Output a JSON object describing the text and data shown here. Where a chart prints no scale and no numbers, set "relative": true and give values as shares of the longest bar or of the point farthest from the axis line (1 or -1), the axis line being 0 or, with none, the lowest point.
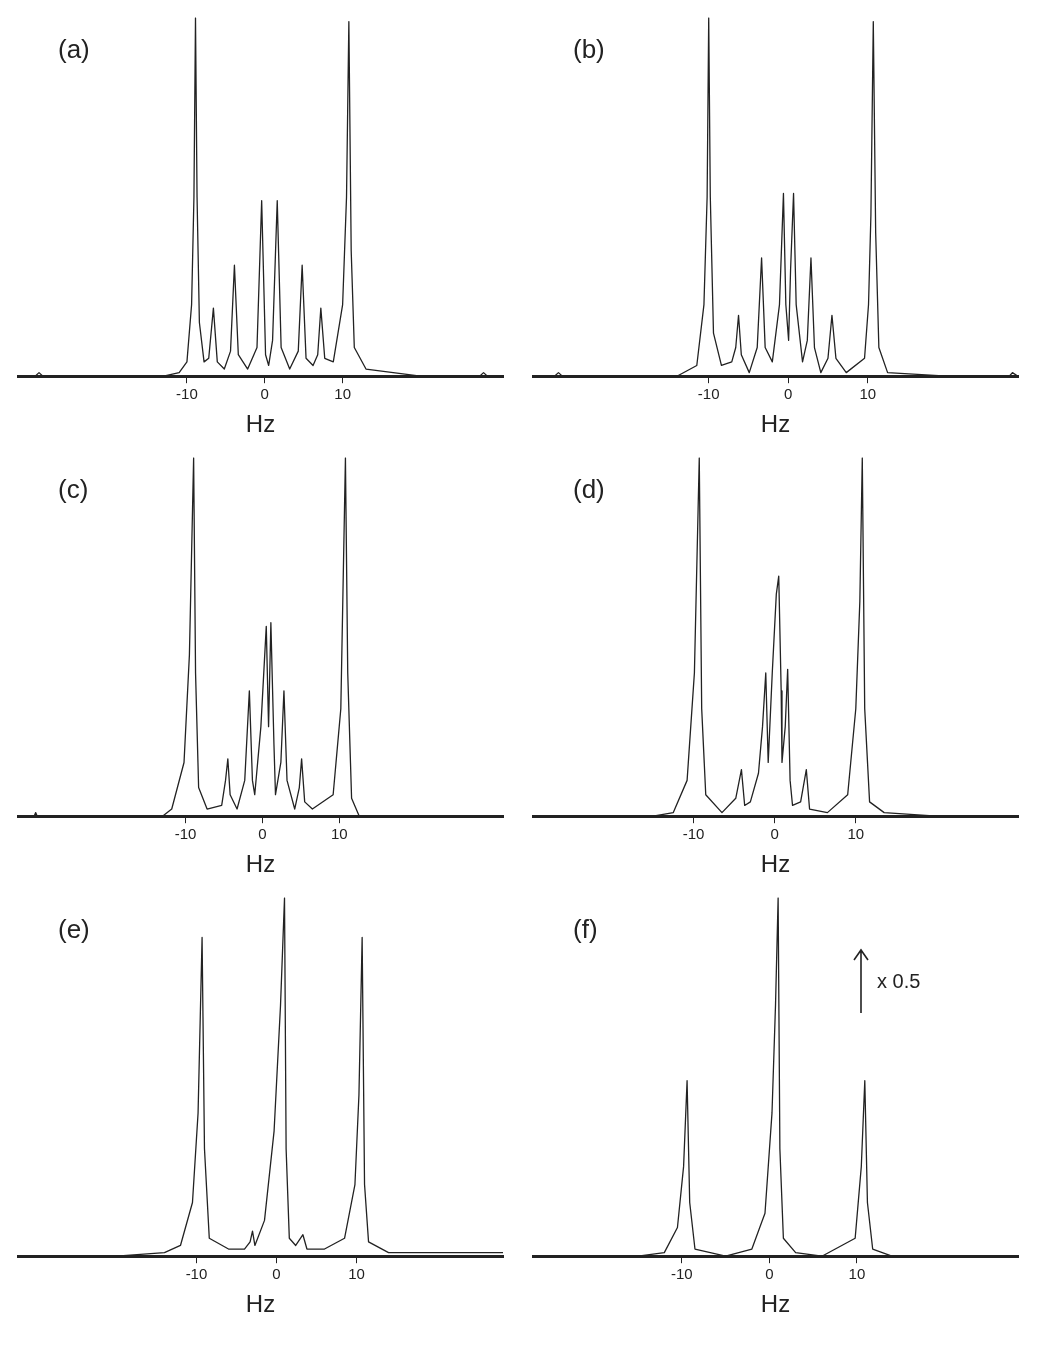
{
  "chart_data": [
    {
      "type": "line",
      "title": "(a)",
      "xlabel": "Hz",
      "color": "#222222",
      "relative": true,
      "grid": false,
      "legend": false,
      "marker": "none",
      "xlim": [
        -31.7,
        30.6
      ],
      "xticks": [
        -10,
        0,
        10
      ],
      "x": [
        -31.7,
        -29.5,
        -29,
        -28.5,
        -13,
        -11,
        -10,
        -9.4,
        -9.1,
        -8.9,
        -8.7,
        -8.4,
        -7.8,
        -7.2,
        -6.6,
        -6.1,
        -5.2,
        -4.4,
        -3.9,
        -3.4,
        -2.2,
        -1.0,
        -0.4,
        0.1,
        0.5,
        1.0,
        1.6,
        2.1,
        3.2,
        4.3,
        4.8,
        5.3,
        6.2,
        6.8,
        7.2,
        7.7,
        8.8,
        10.0,
        10.5,
        10.8,
        11.1,
        11.5,
        13,
        20,
        27.6,
        28.1,
        28.6,
        30.6
      ],
      "values": [
        0,
        0,
        0.01,
        0,
        0,
        0.01,
        0.04,
        0.2,
        0.5,
        1.0,
        0.5,
        0.15,
        0.04,
        0.05,
        0.19,
        0.04,
        0.02,
        0.07,
        0.31,
        0.06,
        0.02,
        0.08,
        0.49,
        0.06,
        0.03,
        0.1,
        0.49,
        0.08,
        0.02,
        0.07,
        0.31,
        0.05,
        0.03,
        0.06,
        0.19,
        0.05,
        0.04,
        0.2,
        0.5,
        0.99,
        0.35,
        0.08,
        0.02,
        0,
        0,
        0.01,
        0,
        0
      ]
    },
    {
      "type": "line",
      "title": "(b)",
      "xlabel": "Hz",
      "color": "#222222",
      "relative": true,
      "grid": false,
      "legend": false,
      "marker": "none",
      "xlim": [
        -32.1,
        28.9
      ],
      "xticks": [
        -10,
        0,
        10
      ],
      "x": [
        -32.1,
        -29.4,
        -28.9,
        -28.4,
        -14,
        -11.5,
        -10.6,
        -10.2,
        -10,
        -9.8,
        -9.4,
        -8.4,
        -7.1,
        -6.6,
        -6.25,
        -5.9,
        -4.9,
        -3.9,
        -3.35,
        -2.9,
        -2.0,
        -1.1,
        -0.6,
        -0.3,
        0.05,
        0.3,
        0.67,
        1.0,
        1.8,
        2.4,
        2.86,
        3.3,
        4.1,
        5.0,
        5.5,
        6.0,
        7.3,
        9.6,
        10.1,
        10.4,
        10.7,
        11.0,
        11.4,
        12.5,
        20,
        27.8,
        28.2,
        28.9
      ],
      "values": [
        0,
        0,
        0.01,
        0,
        0,
        0.03,
        0.2,
        0.5,
        1.0,
        0.5,
        0.12,
        0.03,
        0.04,
        0.08,
        0.17,
        0.06,
        0.01,
        0.08,
        0.33,
        0.08,
        0.04,
        0.2,
        0.51,
        0.2,
        0.1,
        0.3,
        0.51,
        0.2,
        0.04,
        0.1,
        0.33,
        0.08,
        0.01,
        0.05,
        0.17,
        0.05,
        0.01,
        0.05,
        0.2,
        0.45,
        0.99,
        0.4,
        0.08,
        0.01,
        0,
        0,
        0.01,
        0
      ]
    },
    {
      "type": "line",
      "title": "(c)",
      "xlabel": "Hz",
      "color": "#222222",
      "relative": true,
      "grid": false,
      "legend": false,
      "marker": "none",
      "xlim": [
        -31.8,
        31.3
      ],
      "xticks": [
        -10,
        0,
        10
      ],
      "x": [
        -31.8,
        -29.7,
        -29.5,
        -29.3,
        -13,
        -11.8,
        -10.2,
        -9.5,
        -8.95,
        -8.7,
        -8.3,
        -7.2,
        -5.3,
        -4.8,
        -4.5,
        -4.2,
        -3.3,
        -2.3,
        -1.7,
        -1.3,
        -1.0,
        -0.2,
        0.5,
        0.8,
        1.1,
        1.5,
        1.7,
        2.4,
        2.8,
        3.2,
        4.2,
        4.8,
        5.1,
        5.5,
        6.5,
        9.2,
        10.2,
        10.8,
        11.1,
        11.6,
        12.6,
        20,
        31.3
      ],
      "values": [
        0,
        0,
        0.01,
        0,
        0,
        0.02,
        0.15,
        0.45,
        1.0,
        0.4,
        0.08,
        0.02,
        0.03,
        0.1,
        0.16,
        0.06,
        0.02,
        0.1,
        0.35,
        0.1,
        0.06,
        0.25,
        0.53,
        0.25,
        0.54,
        0.2,
        0.06,
        0.15,
        0.35,
        0.1,
        0.02,
        0.08,
        0.16,
        0.04,
        0.02,
        0.06,
        0.3,
        1.0,
        0.4,
        0.05,
        0,
        0,
        0
      ]
    },
    {
      "type": "line",
      "title": "(d)",
      "xlabel": "Hz",
      "color": "#222222",
      "relative": true,
      "grid": false,
      "legend": false,
      "marker": "none",
      "xlim": [
        -29.8,
        30
      ],
      "xticks": [
        -10,
        0,
        10
      ],
      "x": [
        -29.8,
        -15,
        -12.5,
        -10.8,
        -9.9,
        -9.3,
        -9.0,
        -8.5,
        -6.5,
        -4.8,
        -4.1,
        -3.7,
        -3.0,
        -2.0,
        -1.5,
        -1.1,
        -0.8,
        -0.3,
        0.2,
        0.5,
        0.8,
        0.9,
        1.3,
        1.6,
        1.9,
        2.2,
        3.2,
        3.9,
        4.3,
        6.5,
        9.0,
        10.0,
        10.5,
        10.8,
        11.1,
        11.7,
        13.5,
        20,
        30
      ],
      "values": [
        0,
        0,
        0.01,
        0.1,
        0.4,
        1.0,
        0.3,
        0.06,
        0.01,
        0.05,
        0.13,
        0.03,
        0.04,
        0.12,
        0.25,
        0.4,
        0.15,
        0.4,
        0.62,
        0.67,
        0.35,
        0.15,
        0.25,
        0.41,
        0.1,
        0.03,
        0.04,
        0.13,
        0.02,
        0.01,
        0.06,
        0.3,
        0.6,
        1.0,
        0.3,
        0.04,
        0.01,
        0,
        0
      ]
    },
    {
      "type": "line",
      "title": "(e)",
      "xlabel": "Hz",
      "color": "#222222",
      "relative": true,
      "grid": false,
      "legend": false,
      "marker": "none",
      "xlim": [
        -32.3,
        28.3
      ],
      "xticks": [
        -10,
        0,
        10
      ],
      "x": [
        -32.3,
        -20,
        -14,
        -12,
        -10.5,
        -9.8,
        -9.3,
        -9.0,
        -8.4,
        -6,
        -4,
        -3.3,
        -3.0,
        -2.7,
        -1.5,
        -0.3,
        0.5,
        1.0,
        1.2,
        1.6,
        2.4,
        3.3,
        3.8,
        6,
        8.5,
        9.8,
        10.3,
        10.7,
        11.0,
        11.5,
        14,
        20,
        28.3
      ],
      "values": [
        0,
        0,
        0.01,
        0.03,
        0.15,
        0.4,
        0.89,
        0.3,
        0.05,
        0.02,
        0.02,
        0.04,
        0.07,
        0.03,
        0.1,
        0.35,
        0.7,
        1.0,
        0.3,
        0.05,
        0.03,
        0.06,
        0.02,
        0.02,
        0.05,
        0.2,
        0.45,
        0.89,
        0.2,
        0.04,
        0.01,
        0.01,
        0.01
      ]
    },
    {
      "type": "line",
      "title": "(f)",
      "xlabel": "Hz",
      "color": "#222222",
      "relative": true,
      "grid": false,
      "legend": false,
      "marker": "none",
      "xlim": [
        -27,
        28.4
      ],
      "xticks": [
        -10,
        0,
        10
      ],
      "annotations": [
        "x 0.5"
      ],
      "x": [
        -27,
        -15,
        -12,
        -10.5,
        -9.8,
        -9.4,
        -9.1,
        -8.5,
        -5,
        -2,
        -0.5,
        0.3,
        0.7,
        1.0,
        1.2,
        1.6,
        3,
        6,
        9.8,
        10.5,
        10.9,
        11.2,
        11.8,
        14,
        28.4
      ],
      "values": [
        0,
        0,
        0.01,
        0.08,
        0.25,
        0.49,
        0.15,
        0.02,
        0,
        0.02,
        0.12,
        0.4,
        0.7,
        1.0,
        0.3,
        0.05,
        0.01,
        0,
        0.05,
        0.25,
        0.49,
        0.15,
        0.02,
        0,
        0
      ]
    }
  ]
}
